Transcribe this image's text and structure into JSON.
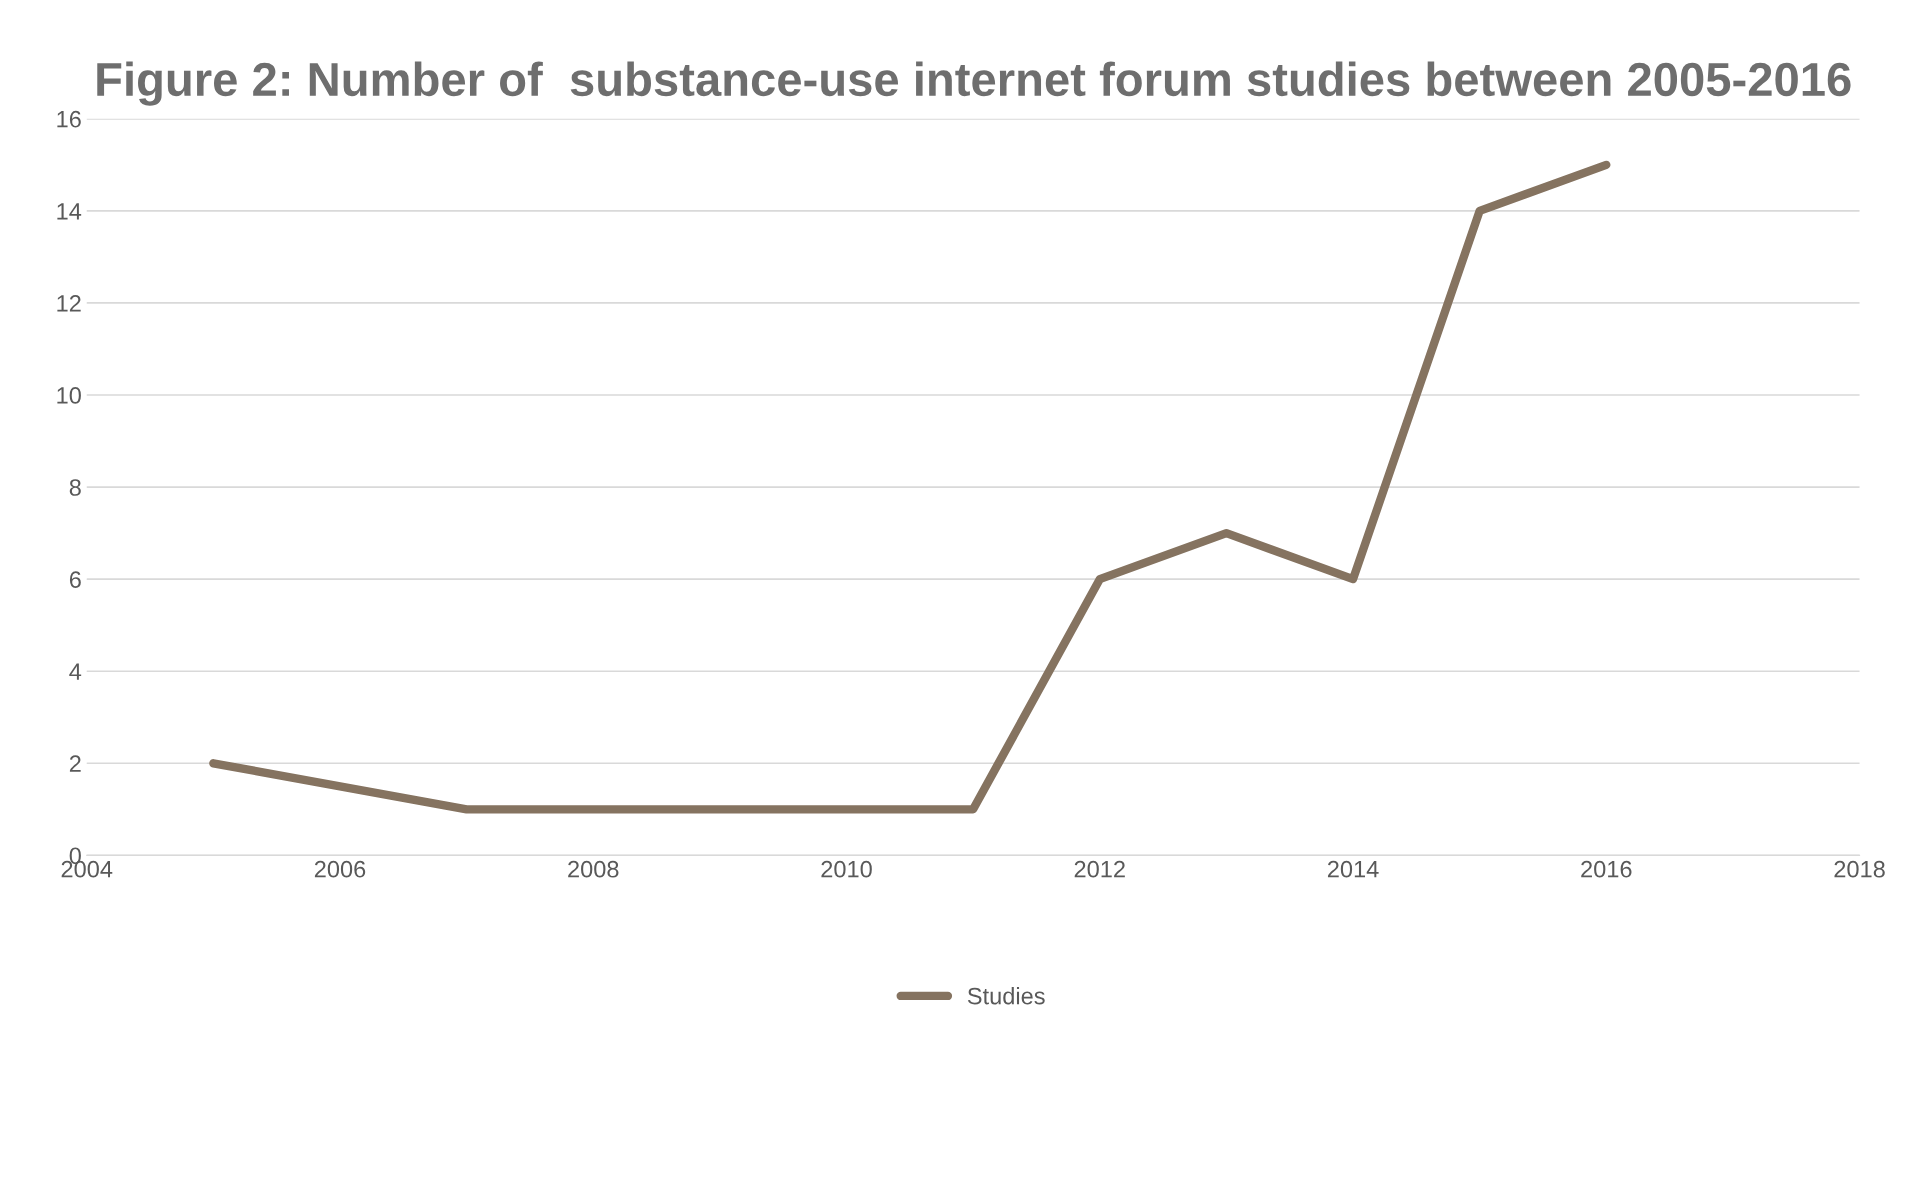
{
  "chart_data": {
    "type": "line",
    "title": "Figure 2: Number of  substance-use internet forum studies between 2005-2016",
    "x": [
      2005,
      2007,
      2008,
      2009,
      2010,
      2011,
      2012,
      2013,
      2014,
      2015,
      2016
    ],
    "series": [
      {
        "name": "Studies",
        "color": "#857360",
        "values": [
          2,
          1,
          1,
          1,
          1,
          1,
          6,
          7,
          6,
          14,
          15
        ]
      }
    ],
    "xlim": [
      2004,
      2018
    ],
    "xticks": [
      2004,
      2006,
      2008,
      2010,
      2012,
      2014,
      2016,
      2018
    ],
    "ylim": [
      0,
      16
    ],
    "yticks": [
      0,
      2,
      4,
      6,
      8,
      10,
      12,
      14,
      16
    ],
    "grid": "y",
    "legend": "bottom",
    "marker": "none",
    "line_style": "solid"
  }
}
